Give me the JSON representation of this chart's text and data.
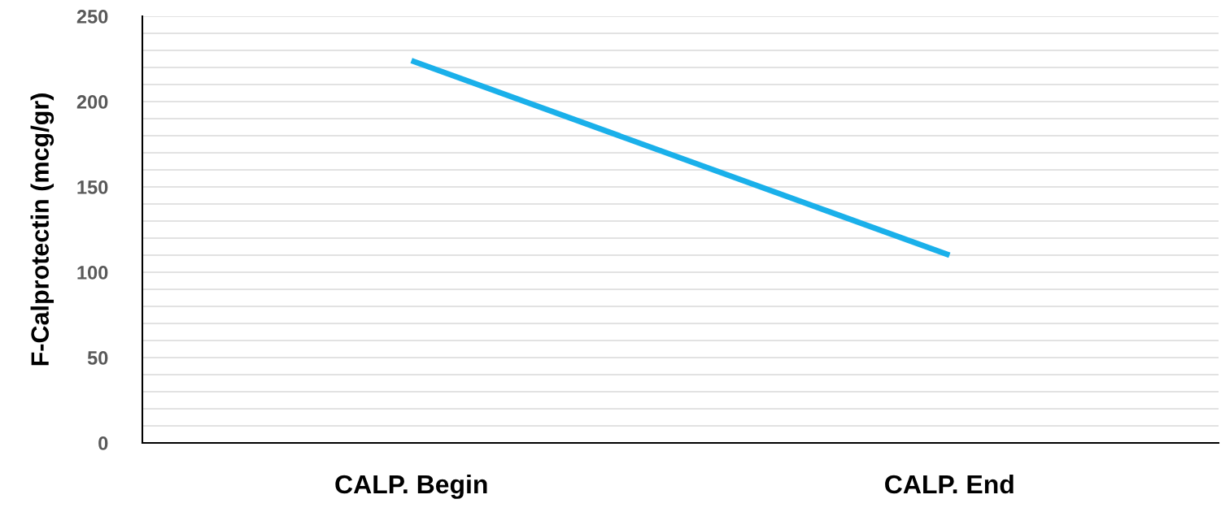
{
  "chart_data": {
    "type": "line",
    "ylabel": "F-Calprotectin (mcg/gr)",
    "categories": [
      "CALP. Begin",
      "CALP. End"
    ],
    "series": [
      {
        "color": "#1ab0ea",
        "values": [
          224,
          110
        ]
      }
    ],
    "ylim": [
      0,
      250
    ],
    "yticks": [
      0,
      {
        "value": 10,
        "label": null
      },
      {
        "value": 20,
        "label": null
      },
      {
        "value": 30,
        "label": null
      },
      {
        "value": 40,
        "label": null
      },
      50,
      {
        "value": 60,
        "label": null
      },
      {
        "value": 70,
        "label": null
      },
      {
        "value": 80,
        "label": null
      },
      {
        "value": 90,
        "label": null
      },
      100,
      {
        "value": 110,
        "label": null
      },
      {
        "value": 120,
        "label": null
      },
      {
        "value": 130,
        "label": null
      },
      {
        "value": 140,
        "label": null
      },
      150,
      {
        "value": 160,
        "label": null
      },
      {
        "value": 170,
        "label": null
      },
      {
        "value": 180,
        "label": null
      },
      {
        "value": 190,
        "label": null
      },
      200,
      {
        "value": 210,
        "label": null
      },
      {
        "value": 220,
        "label": null
      },
      {
        "value": 230,
        "label": null
      },
      {
        "value": 240,
        "label": null
      },
      250
    ],
    "grid": "y",
    "marker": "none",
    "line_style": "solid"
  }
}
